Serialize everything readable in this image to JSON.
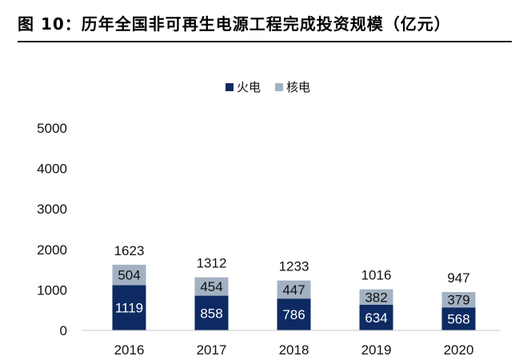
{
  "header": {
    "title": "图 10：历年全国非可再生电源工程完成投资规模（亿元）"
  },
  "chart_data": {
    "type": "bar",
    "stacked": true,
    "categories": [
      "2016",
      "2017",
      "2018",
      "2019",
      "2020"
    ],
    "series": [
      {
        "name": "火电",
        "values": [
          1119,
          858,
          786,
          634,
          568
        ],
        "color": "#0d2a62",
        "label_color": "#ffffff"
      },
      {
        "name": "核电",
        "values": [
          504,
          454,
          447,
          382,
          379
        ],
        "color": "#a3b2c2",
        "label_color": "#111111"
      }
    ],
    "totals": [
      1623,
      1312,
      1233,
      1016,
      947
    ],
    "ylim": [
      0,
      5000
    ],
    "yticks": [
      0,
      1000,
      2000,
      3000,
      4000,
      5000
    ],
    "grid": false,
    "legend_position": "top-center"
  }
}
